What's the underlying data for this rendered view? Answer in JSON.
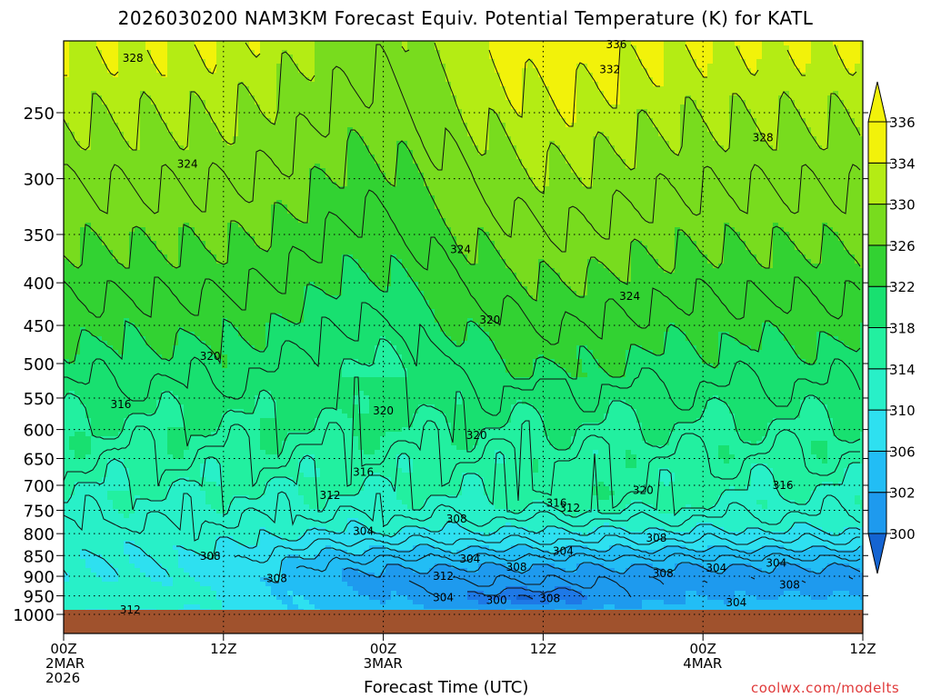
{
  "chart_data": {
    "type": "heatmap",
    "title": "2026030200 NAM3KM Forecast Equiv. Potential Temperature (K) for KATL",
    "xlabel": "Forecast Time (UTC)",
    "ylabel": "",
    "x_hours_range": [
      0,
      60
    ],
    "y_range_hpa": [
      1000,
      200
    ],
    "y_scale": "log",
    "x_ticks": [
      {
        "h": 0,
        "lines": [
          "00Z",
          "2MAR",
          "2026"
        ]
      },
      {
        "h": 12,
        "lines": [
          "12Z"
        ]
      },
      {
        "h": 24,
        "lines": [
          "00Z",
          "3MAR"
        ]
      },
      {
        "h": 36,
        "lines": [
          "12Z"
        ]
      },
      {
        "h": 48,
        "lines": [
          "00Z",
          "4MAR"
        ]
      },
      {
        "h": 60,
        "lines": [
          "12Z"
        ]
      }
    ],
    "y_ticks": [
      "250",
      "300",
      "350",
      "400",
      "450",
      "500",
      "550",
      "600",
      "650",
      "700",
      "750",
      "800",
      "850",
      "900",
      "950",
      "1000"
    ],
    "grid": "dotted",
    "colorbar": {
      "position": "right",
      "levels": [
        "300",
        "302",
        "306",
        "310",
        "314",
        "318",
        "322",
        "326",
        "330",
        "334",
        "336"
      ],
      "colors": [
        "#1e78e6",
        "#1e9aee",
        "#22bdf5",
        "#2ee0f0",
        "#28f0c8",
        "#22f0a0",
        "#18e070",
        "#32d232",
        "#78dc1e",
        "#b4ec14",
        "#f2f20a"
      ],
      "end_colors": {
        "below": "#1464d2",
        "above": "#f2f20a"
      }
    },
    "surface_color": "#a0522d",
    "contour_labels": [
      {
        "text": "336",
        "h": 41.5,
        "p": 207
      },
      {
        "text": "332",
        "h": 41.0,
        "p": 222
      },
      {
        "text": "328",
        "h": 5.2,
        "p": 215
      },
      {
        "text": "328",
        "h": 52.5,
        "p": 268
      },
      {
        "text": "324",
        "h": 9.3,
        "p": 288
      },
      {
        "text": "324",
        "h": 29.8,
        "p": 365
      },
      {
        "text": "324",
        "h": 42.5,
        "p": 415
      },
      {
        "text": "320",
        "h": 32.0,
        "p": 443
      },
      {
        "text": "320",
        "h": 11.0,
        "p": 490
      },
      {
        "text": "320",
        "h": 24.0,
        "p": 570
      },
      {
        "text": "320",
        "h": 31.0,
        "p": 610
      },
      {
        "text": "320",
        "h": 43.5,
        "p": 710
      },
      {
        "text": "316",
        "h": 4.3,
        "p": 560
      },
      {
        "text": "316",
        "h": 22.5,
        "p": 675
      },
      {
        "text": "316",
        "h": 37.0,
        "p": 735
      },
      {
        "text": "316",
        "h": 54.0,
        "p": 700
      },
      {
        "text": "312",
        "h": 20.0,
        "p": 720
      },
      {
        "text": "312",
        "h": 38.0,
        "p": 745
      },
      {
        "text": "312",
        "h": 28.5,
        "p": 900
      },
      {
        "text": "312",
        "h": 5.0,
        "p": 988
      },
      {
        "text": "308",
        "h": 29.5,
        "p": 768
      },
      {
        "text": "308",
        "h": 11.0,
        "p": 852
      },
      {
        "text": "308",
        "h": 16.0,
        "p": 905
      },
      {
        "text": "308",
        "h": 34.0,
        "p": 878
      },
      {
        "text": "308",
        "h": 44.5,
        "p": 810
      },
      {
        "text": "308",
        "h": 45.0,
        "p": 893
      },
      {
        "text": "308",
        "h": 36.5,
        "p": 957
      },
      {
        "text": "308",
        "h": 54.5,
        "p": 922
      },
      {
        "text": "304",
        "h": 22.5,
        "p": 795
      },
      {
        "text": "304",
        "h": 30.5,
        "p": 858
      },
      {
        "text": "304",
        "h": 37.5,
        "p": 840
      },
      {
        "text": "304",
        "h": 49.0,
        "p": 880
      },
      {
        "text": "304",
        "h": 53.5,
        "p": 868
      },
      {
        "text": "304",
        "h": 28.5,
        "p": 955
      },
      {
        "text": "304",
        "h": 50.5,
        "p": 968
      },
      {
        "text": "300",
        "h": 32.5,
        "p": 962
      }
    ]
  },
  "xaxis_title": "Forecast Time (UTC)",
  "watermark": "coolwx.com/modelts"
}
